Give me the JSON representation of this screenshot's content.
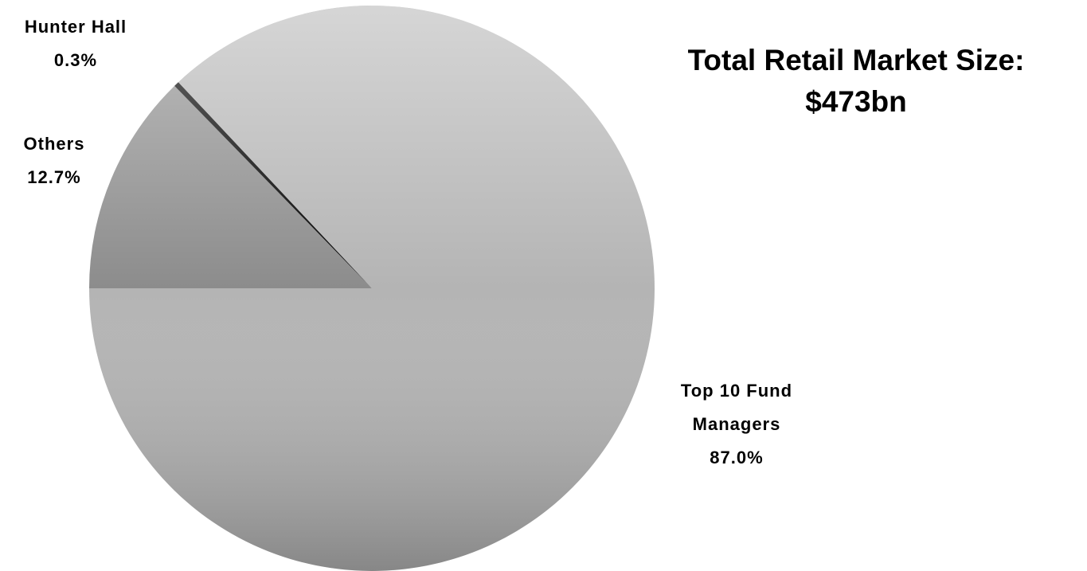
{
  "chart_data": {
    "type": "pie",
    "title": "Total Retail Market Size:",
    "subtitle": "$473bn",
    "categories": [
      "Others",
      "Hunter Hall",
      "Top 10 Fund Managers"
    ],
    "values": [
      12.7,
      0.3,
      87.0
    ],
    "value_labels": [
      "12.7%",
      "0.3%",
      "87.0%"
    ],
    "colors": [
      "#8c8c8c",
      "#000000",
      "#b4b4b4"
    ],
    "start_angle": 270
  }
}
